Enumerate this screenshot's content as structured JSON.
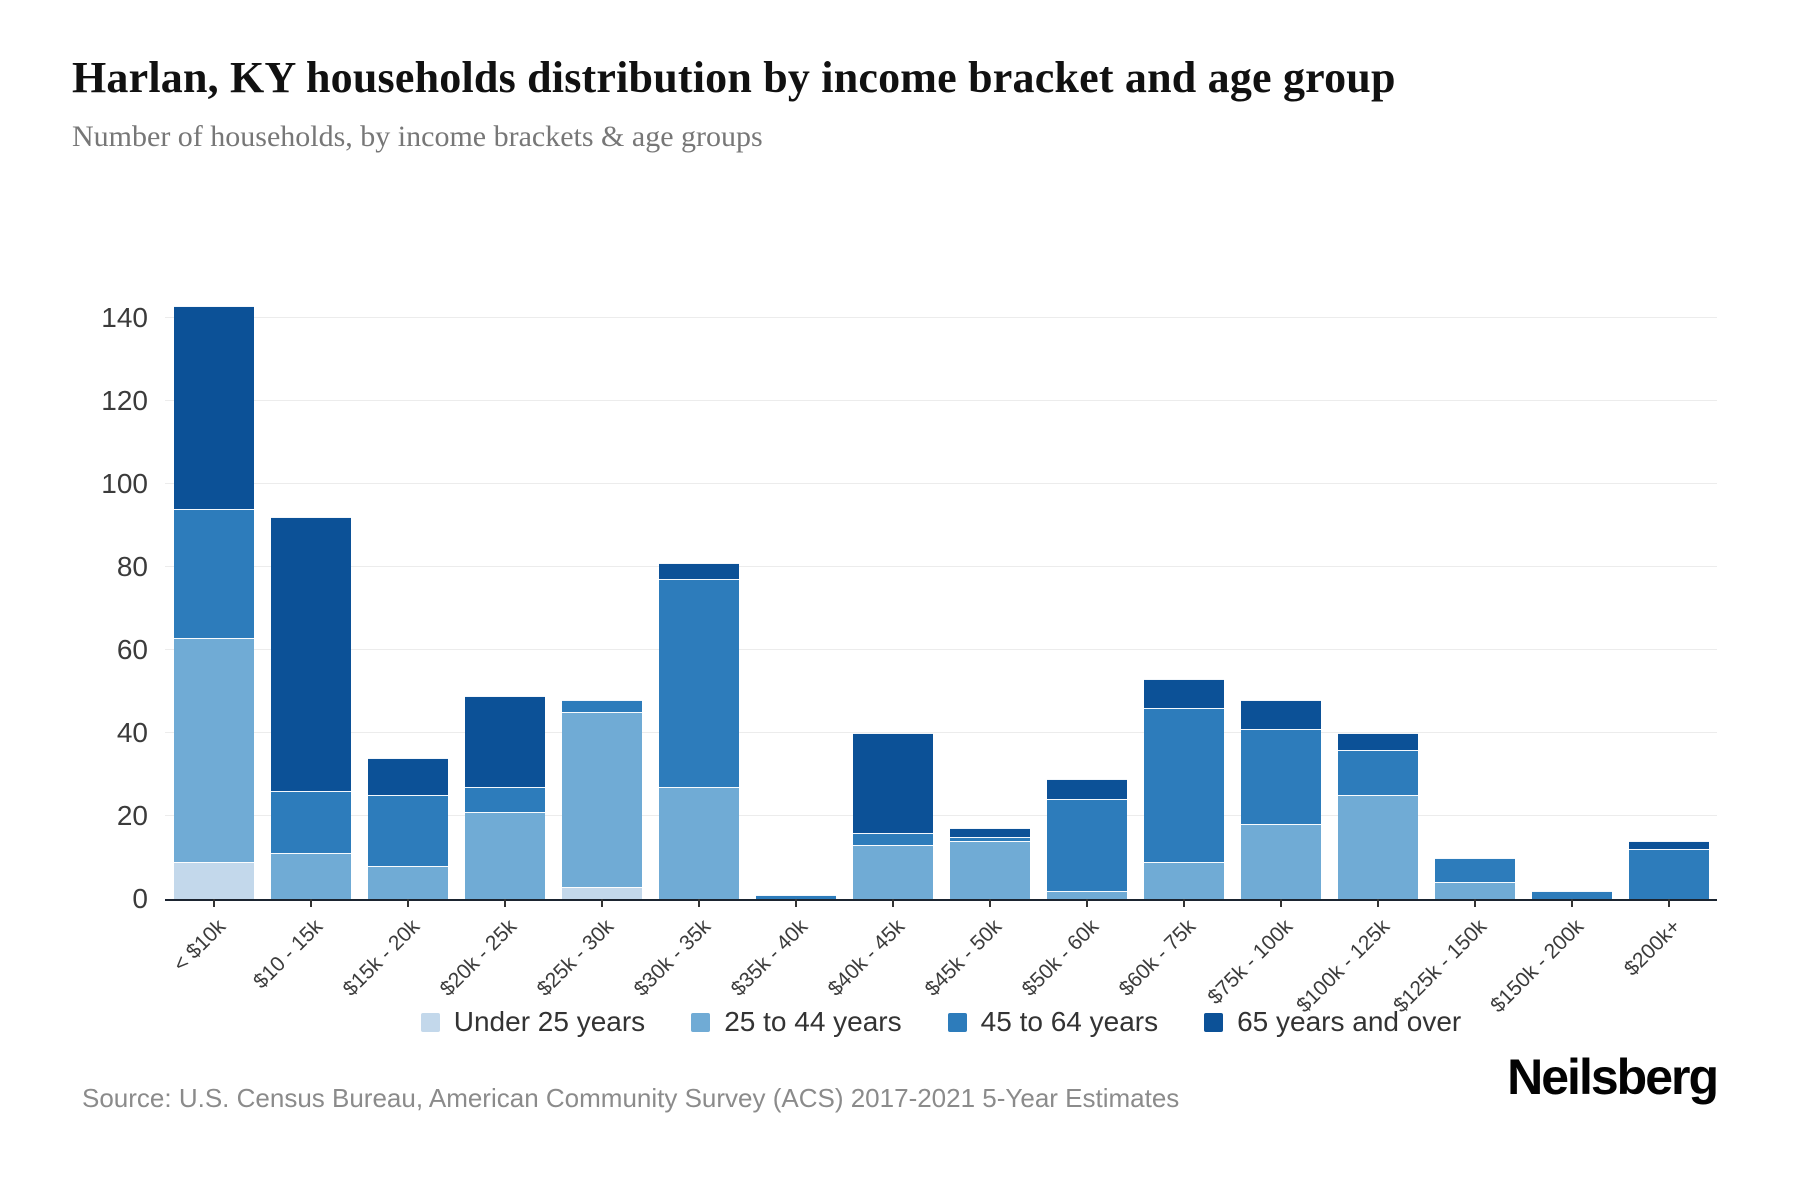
{
  "header": {
    "title": "Harlan, KY households distribution by income bracket and age group",
    "subtitle": "Number of households, by income brackets & age groups"
  },
  "chart_data": {
    "type": "bar",
    "stacked": true,
    "title": "Harlan, KY households distribution by income bracket and age group",
    "xlabel": "",
    "ylabel": "",
    "categories": [
      "< $10k",
      "$10 - 15k",
      "$15k - 20k",
      "$20k - 25k",
      "$25k - 30k",
      "$30k - 35k",
      "$35k - 40k",
      "$40k - 45k",
      "$45k - 50k",
      "$50k - 60k",
      "$60k - 75k",
      "$75k - 100k",
      "$100k - 125k",
      "$125k - 150k",
      "$150k - 200k",
      "$200k+"
    ],
    "series": [
      {
        "name": "Under 25 years",
        "color": "#c3d8eb",
        "values": [
          9,
          0,
          0,
          0,
          3,
          0,
          0,
          0,
          0,
          0,
          0,
          0,
          0,
          0,
          0,
          0
        ]
      },
      {
        "name": "25 to 44 years",
        "color": "#70abd5",
        "values": [
          54,
          11,
          8,
          21,
          42,
          27,
          0,
          13,
          14,
          2,
          9,
          18,
          25,
          4,
          0,
          0
        ]
      },
      {
        "name": "45 to 64 years",
        "color": "#2d7cbb",
        "values": [
          31,
          15,
          17,
          6,
          3,
          50,
          1,
          3,
          1,
          22,
          37,
          23,
          11,
          6,
          2,
          12
        ]
      },
      {
        "name": "65 years and over",
        "color": "#0c5197",
        "values": [
          49,
          66,
          9,
          22,
          0,
          4,
          0,
          24,
          2,
          5,
          7,
          7,
          4,
          0,
          0,
          2
        ]
      }
    ],
    "ylim": [
      0,
      140
    ],
    "yticks": [
      0,
      20,
      40,
      60,
      80,
      100,
      120,
      140
    ],
    "grid": "horizontal",
    "legend_position": "bottom"
  },
  "footer": {
    "source": "Source: U.S. Census Bureau, American Community Survey (ACS) 2017-2021 5-Year Estimates",
    "brand": "Neilsberg"
  }
}
